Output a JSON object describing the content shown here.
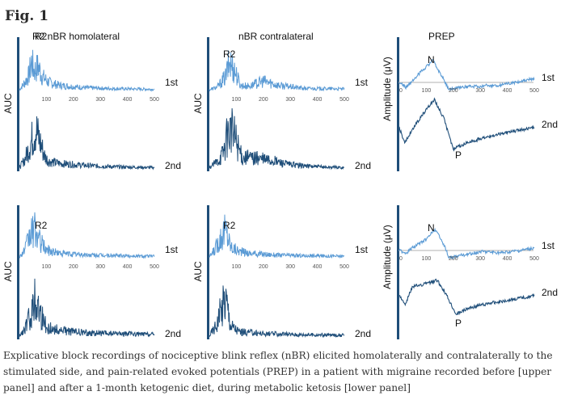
{
  "figure": {
    "title": "Fig. 1",
    "caption": "Explicative block recordings of nociceptive blink reflex (nBR) elicited homolaterally and contralaterally to the stimulated side, and pain-related evoked potentials (PREP) in a patient with migraine recorded before [upper panel] and after a 1-month ketogenic diet, during metabolic ketosis [lower panel]",
    "colors": {
      "first": "#5b9bd5",
      "second": "#1f4e79",
      "axis": "#1f4e79",
      "baseline": "#b0b0b0"
    }
  },
  "chart_data": [
    {
      "type": "line",
      "panel": "upper",
      "title": "R2  nBR homolateral",
      "ylabel": "AUC",
      "peak_label": "R2",
      "x_ticks": [
        "100",
        "200",
        "300",
        "400",
        "500"
      ],
      "xlim": [
        0,
        500
      ],
      "series": [
        {
          "name": "1st",
          "profile": [
            [
              0,
              0.05
            ],
            [
              20,
              0.3
            ],
            [
              35,
              0.55
            ],
            [
              45,
              1.0
            ],
            [
              55,
              0.7
            ],
            [
              70,
              0.85
            ],
            [
              85,
              0.5
            ],
            [
              110,
              0.3
            ],
            [
              150,
              0.2
            ],
            [
              250,
              0.12
            ],
            [
              350,
              0.09
            ],
            [
              500,
              0.07
            ]
          ]
        },
        {
          "name": "2nd",
          "profile": [
            [
              0,
              0.05
            ],
            [
              20,
              0.25
            ],
            [
              40,
              0.6
            ],
            [
              60,
              1.0
            ],
            [
              75,
              0.7
            ],
            [
              95,
              0.3
            ],
            [
              110,
              0.2
            ],
            [
              150,
              0.15
            ],
            [
              250,
              0.1
            ],
            [
              350,
              0.07
            ],
            [
              500,
              0.05
            ]
          ]
        }
      ]
    },
    {
      "type": "line",
      "panel": "upper",
      "title": "nBR contralateral",
      "ylabel": "AUC",
      "peak_label": "R2",
      "x_ticks": [
        "100",
        "200",
        "300",
        "400",
        "500"
      ],
      "xlim": [
        0,
        500
      ],
      "series": [
        {
          "name": "1st",
          "profile": [
            [
              0,
              0.05
            ],
            [
              30,
              0.15
            ],
            [
              60,
              0.5
            ],
            [
              75,
              1.0
            ],
            [
              95,
              0.7
            ],
            [
              115,
              0.2
            ],
            [
              150,
              0.18
            ],
            [
              200,
              0.35
            ],
            [
              260,
              0.2
            ],
            [
              350,
              0.1
            ],
            [
              500,
              0.08
            ]
          ]
        },
        {
          "name": "2nd",
          "profile": [
            [
              0,
              0.05
            ],
            [
              30,
              0.2
            ],
            [
              50,
              0.4
            ],
            [
              75,
              1.0
            ],
            [
              95,
              0.8
            ],
            [
              120,
              0.3
            ],
            [
              170,
              0.28
            ],
            [
              230,
              0.22
            ],
            [
              300,
              0.12
            ],
            [
              400,
              0.07
            ],
            [
              500,
              0.05
            ]
          ]
        }
      ]
    },
    {
      "type": "line",
      "panel": "upper",
      "title": "PREP",
      "ylabel": "Amplitude (μV)",
      "peak_labels": [
        "N",
        "P"
      ],
      "x_ticks": [
        "100",
        "200",
        "300",
        "400",
        "500"
      ],
      "xlim": [
        0,
        500
      ],
      "series": [
        {
          "name": "1st",
          "profile": [
            [
              0,
              0
            ],
            [
              25,
              -0.2
            ],
            [
              60,
              0.2
            ],
            [
              90,
              0.55
            ],
            [
              125,
              0.9
            ],
            [
              150,
              0.4
            ],
            [
              185,
              -0.3
            ],
            [
              230,
              -0.2
            ],
            [
              300,
              -0.15
            ],
            [
              380,
              -0.1
            ],
            [
              450,
              0.05
            ],
            [
              500,
              0.15
            ]
          ]
        },
        {
          "name": "2nd",
          "profile": [
            [
              0,
              0
            ],
            [
              20,
              -0.5
            ],
            [
              60,
              0.1
            ],
            [
              100,
              0.6
            ],
            [
              130,
              0.9
            ],
            [
              165,
              0.3
            ],
            [
              200,
              -0.7
            ],
            [
              250,
              -0.5
            ],
            [
              320,
              -0.3
            ],
            [
              400,
              -0.15
            ],
            [
              500,
              0.0
            ]
          ]
        }
      ]
    },
    {
      "type": "line",
      "panel": "lower",
      "title": "",
      "ylabel": "AUC",
      "peak_label": "R2",
      "x_ticks": [
        "100",
        "200",
        "300",
        "400",
        "500"
      ],
      "xlim": [
        0,
        500
      ],
      "series": [
        {
          "name": "1st",
          "profile": [
            [
              0,
              0.05
            ],
            [
              20,
              0.3
            ],
            [
              40,
              0.8
            ],
            [
              55,
              1.0
            ],
            [
              75,
              0.6
            ],
            [
              100,
              0.3
            ],
            [
              150,
              0.18
            ],
            [
              250,
              0.12
            ],
            [
              350,
              0.1
            ],
            [
              500,
              0.08
            ]
          ]
        },
        {
          "name": "2nd",
          "profile": [
            [
              0,
              0.05
            ],
            [
              20,
              0.2
            ],
            [
              40,
              0.55
            ],
            [
              60,
              1.0
            ],
            [
              80,
              0.6
            ],
            [
              100,
              0.25
            ],
            [
              150,
              0.18
            ],
            [
              250,
              0.12
            ],
            [
              350,
              0.1
            ],
            [
              500,
              0.08
            ]
          ]
        }
      ]
    },
    {
      "type": "line",
      "panel": "lower",
      "title": "",
      "ylabel": "AUC",
      "peak_label": "R2",
      "x_ticks": [
        "100",
        "200",
        "300",
        "400",
        "500"
      ],
      "xlim": [
        0,
        500
      ],
      "series": [
        {
          "name": "1st",
          "profile": [
            [
              0,
              0.05
            ],
            [
              20,
              0.3
            ],
            [
              40,
              0.7
            ],
            [
              60,
              1.0
            ],
            [
              80,
              0.4
            ],
            [
              110,
              0.25
            ],
            [
              150,
              0.18
            ],
            [
              250,
              0.12
            ],
            [
              350,
              0.1
            ],
            [
              500,
              0.08
            ]
          ]
        },
        {
          "name": "2nd",
          "profile": [
            [
              0,
              0.05
            ],
            [
              25,
              0.3
            ],
            [
              45,
              0.7
            ],
            [
              60,
              1.0
            ],
            [
              80,
              0.3
            ],
            [
              110,
              0.15
            ],
            [
              200,
              0.1
            ],
            [
              300,
              0.08
            ],
            [
              500,
              0.06
            ]
          ]
        }
      ]
    },
    {
      "type": "line",
      "panel": "lower",
      "title": "",
      "ylabel": "Amplitude (μV)",
      "peak_labels": [
        "N",
        "P"
      ],
      "x_ticks": [
        "100",
        "200",
        "300",
        "400",
        "500"
      ],
      "xlim": [
        0,
        500
      ],
      "series": [
        {
          "name": "1st",
          "profile": [
            [
              0,
              0
            ],
            [
              25,
              -0.1
            ],
            [
              60,
              0.2
            ],
            [
              100,
              0.45
            ],
            [
              130,
              0.85
            ],
            [
              155,
              0.5
            ],
            [
              185,
              -0.3
            ],
            [
              230,
              -0.2
            ],
            [
              300,
              -0.05
            ],
            [
              380,
              -0.1
            ],
            [
              450,
              0.0
            ],
            [
              500,
              0.1
            ]
          ]
        },
        {
          "name": "2nd",
          "profile": [
            [
              0,
              0
            ],
            [
              20,
              -0.3
            ],
            [
              50,
              0.3
            ],
            [
              100,
              0.4
            ],
            [
              140,
              0.5
            ],
            [
              170,
              0.1
            ],
            [
              210,
              -0.6
            ],
            [
              260,
              -0.4
            ],
            [
              330,
              -0.25
            ],
            [
              400,
              -0.15
            ],
            [
              500,
              0.0
            ]
          ]
        }
      ]
    }
  ]
}
